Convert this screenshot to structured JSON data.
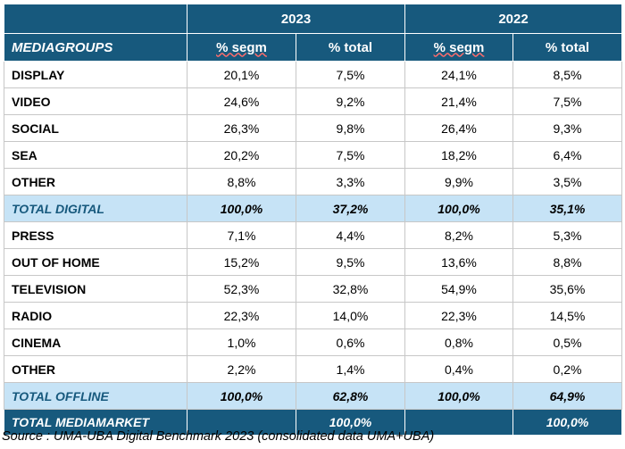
{
  "header": {
    "year_a": "2023",
    "year_b": "2022",
    "col_group": "MEDIAGROUPS",
    "col_segm_a": "% segm",
    "col_total_a": "% total",
    "col_segm_b": "% segm",
    "col_total_b": "% total"
  },
  "digital": [
    {
      "label": "DISPLAY",
      "v": [
        "20,1%",
        "7,5%",
        "24,1%",
        "8,5%"
      ]
    },
    {
      "label": "VIDEO",
      "v": [
        "24,6%",
        "9,2%",
        "21,4%",
        "7,5%"
      ]
    },
    {
      "label": "SOCIAL",
      "v": [
        "26,3%",
        "9,8%",
        "26,4%",
        "9,3%"
      ]
    },
    {
      "label": "SEA",
      "v": [
        "20,2%",
        "7,5%",
        "18,2%",
        "6,4%"
      ]
    },
    {
      "label": "OTHER",
      "v": [
        "8,8%",
        "3,3%",
        "9,9%",
        "3,5%"
      ]
    }
  ],
  "total_digital": {
    "label": "TOTAL DIGITAL",
    "v": [
      "100,0%",
      "37,2%",
      "100,0%",
      "35,1%"
    ]
  },
  "offline": [
    {
      "label": "PRESS",
      "v": [
        "7,1%",
        "4,4%",
        "8,2%",
        "5,3%"
      ]
    },
    {
      "label": "OUT OF HOME",
      "v": [
        "15,2%",
        "9,5%",
        "13,6%",
        "8,8%"
      ]
    },
    {
      "label": "TELEVISION",
      "v": [
        "52,3%",
        "32,8%",
        "54,9%",
        "35,6%"
      ]
    },
    {
      "label": "RADIO",
      "v": [
        "22,3%",
        "14,0%",
        "22,3%",
        "14,5%"
      ]
    },
    {
      "label": "CINEMA",
      "v": [
        "1,0%",
        "0,6%",
        "0,8%",
        "0,5%"
      ]
    },
    {
      "label": "OTHER",
      "v": [
        "2,2%",
        "1,4%",
        "0,4%",
        "0,2%"
      ]
    }
  ],
  "total_offline": {
    "label": "TOTAL OFFLINE",
    "v": [
      "100,0%",
      "62,8%",
      "100,0%",
      "64,9%"
    ]
  },
  "total_market": {
    "label": "TOTAL MEDIAMARKET",
    "v": [
      "",
      "100,0%",
      "",
      "100,0%"
    ]
  },
  "source": "Source : UMA-UBA Digital Benchmark 2023 (consolidated data UMA+UBA)",
  "colors": {
    "header_bg": "#17597d",
    "total_bg": "#c6e3f6"
  }
}
